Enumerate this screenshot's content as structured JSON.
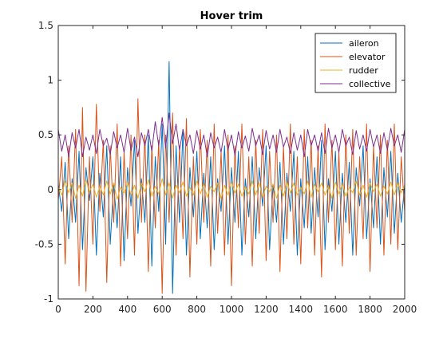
{
  "chart_data": {
    "type": "line",
    "title": "Hover trim",
    "xlabel": "",
    "ylabel": "",
    "xlim": [
      0,
      2000
    ],
    "ylim": [
      -1,
      1.5
    ],
    "xticks": [
      0,
      200,
      400,
      600,
      800,
      1000,
      1200,
      1400,
      1600,
      1800,
      2000
    ],
    "yticks": [
      -1,
      -0.5,
      0,
      0.5,
      1,
      1.5
    ],
    "xtick_labels": [
      "0",
      "200",
      "400",
      "600",
      "800",
      "1000",
      "1200",
      "1400",
      "1600",
      "1800",
      "2000"
    ],
    "ytick_labels": [
      "-1",
      "-0.5",
      "0",
      "0.5",
      "1",
      "1.5"
    ],
    "grid": false,
    "legend_position": "top-right",
    "series": [
      {
        "name": "aileron",
        "color": "#0072BD",
        "x": [
          0,
          20,
          40,
          60,
          80,
          100,
          120,
          140,
          160,
          180,
          200,
          220,
          240,
          260,
          280,
          300,
          320,
          340,
          360,
          380,
          400,
          420,
          440,
          460,
          480,
          500,
          520,
          540,
          560,
          580,
          600,
          620,
          640,
          660,
          680,
          700,
          720,
          740,
          760,
          780,
          800,
          820,
          840,
          860,
          880,
          900,
          920,
          940,
          960,
          980,
          1000,
          1020,
          1040,
          1060,
          1080,
          1100,
          1120,
          1140,
          1160,
          1180,
          1200,
          1220,
          1240,
          1260,
          1280,
          1300,
          1320,
          1340,
          1360,
          1380,
          1400,
          1420,
          1440,
          1460,
          1480,
          1500,
          1520,
          1540,
          1560,
          1580,
          1600,
          1620,
          1640,
          1660,
          1680,
          1700,
          1720,
          1740,
          1760,
          1780,
          1800,
          1820,
          1840,
          1860,
          1880,
          1900,
          1920,
          1940,
          1960,
          1980,
          2000
        ],
        "y": [
          0.05,
          -0.2,
          0.25,
          -0.45,
          0.1,
          -0.3,
          0.35,
          -0.55,
          0.2,
          -0.1,
          0.3,
          -0.6,
          0.15,
          -0.25,
          0.4,
          -0.5,
          0.05,
          -0.35,
          0.3,
          -0.65,
          0.2,
          -0.15,
          0.45,
          -0.4,
          0.1,
          -0.3,
          0.5,
          -0.7,
          0.3,
          -0.2,
          0.6,
          -0.5,
          1.17,
          -0.95,
          0.4,
          -0.3,
          0.55,
          -0.6,
          0.2,
          -0.25,
          0.35,
          -0.45,
          0.15,
          -0.35,
          0.3,
          -0.55,
          0.1,
          -0.2,
          0.4,
          -0.5,
          0.2,
          -0.3,
          0.35,
          -0.6,
          0.1,
          -0.25,
          0.3,
          -0.45,
          0.2,
          -0.15,
          0.4,
          -0.55,
          0.05,
          -0.3,
          0.25,
          -0.5,
          0.15,
          -0.2,
          0.35,
          -0.6,
          0.1,
          -0.35,
          0.3,
          -0.4,
          0.2,
          -0.25,
          0.45,
          -0.55,
          0.1,
          -0.2,
          0.35,
          -0.5,
          0.15,
          -0.3,
          0.25,
          -0.6,
          0.2,
          -0.15,
          0.4,
          -0.45,
          0.1,
          -0.35,
          0.3,
          -0.5,
          0.2,
          -0.25,
          0.35,
          -0.4,
          0.15,
          -0.3,
          0.05
        ]
      },
      {
        "name": "elevator",
        "color": "#D95319",
        "x": [
          0,
          20,
          40,
          60,
          80,
          100,
          120,
          140,
          160,
          180,
          200,
          220,
          240,
          260,
          280,
          300,
          320,
          340,
          360,
          380,
          400,
          420,
          440,
          460,
          480,
          500,
          520,
          540,
          560,
          580,
          600,
          620,
          640,
          660,
          680,
          700,
          720,
          740,
          760,
          780,
          800,
          820,
          840,
          860,
          880,
          900,
          920,
          940,
          960,
          980,
          1000,
          1020,
          1040,
          1060,
          1080,
          1100,
          1120,
          1140,
          1160,
          1180,
          1200,
          1220,
          1240,
          1260,
          1280,
          1300,
          1320,
          1340,
          1360,
          1380,
          1400,
          1420,
          1440,
          1460,
          1480,
          1500,
          1520,
          1540,
          1560,
          1580,
          1600,
          1620,
          1640,
          1660,
          1680,
          1700,
          1720,
          1740,
          1760,
          1780,
          1800,
          1820,
          1840,
          1860,
          1880,
          1900,
          1920,
          1940,
          1960,
          1980,
          2000
        ],
        "y": [
          -0.1,
          0.3,
          -0.68,
          0.4,
          -0.3,
          0.55,
          -0.88,
          0.75,
          -0.93,
          0.3,
          -0.5,
          0.78,
          -0.2,
          0.45,
          -0.85,
          0.4,
          -0.3,
          0.6,
          -0.7,
          0.35,
          -0.45,
          0.5,
          -0.6,
          0.83,
          -0.3,
          0.5,
          -0.75,
          0.4,
          -0.35,
          0.45,
          -0.95,
          0.5,
          -0.3,
          0.7,
          -0.6,
          0.4,
          -0.45,
          0.65,
          -0.8,
          0.3,
          -0.5,
          0.55,
          -0.3,
          0.45,
          -0.7,
          0.6,
          -0.4,
          0.35,
          -0.6,
          0.5,
          -0.88,
          0.4,
          -0.35,
          0.6,
          -0.5,
          0.3,
          -0.7,
          0.45,
          -0.4,
          0.55,
          -0.65,
          0.35,
          -0.3,
          0.5,
          -0.75,
          0.4,
          -0.45,
          0.6,
          -0.5,
          0.3,
          -0.68,
          0.55,
          -0.35,
          0.45,
          -0.6,
          0.4,
          -0.8,
          0.6,
          -0.3,
          0.45,
          -0.55,
          0.35,
          -0.7,
          0.5,
          -0.4,
          0.55,
          -0.6,
          0.3,
          -0.45,
          0.6,
          -0.75,
          0.4,
          -0.35,
          0.5,
          -0.6,
          0.45,
          -0.5,
          0.6,
          -0.55,
          0.3,
          -0.2
        ]
      },
      {
        "name": "rudder",
        "color": "#EDB120",
        "x": [
          0,
          20,
          40,
          60,
          80,
          100,
          120,
          140,
          160,
          180,
          200,
          220,
          240,
          260,
          280,
          300,
          320,
          340,
          360,
          380,
          400,
          420,
          440,
          460,
          480,
          500,
          520,
          540,
          560,
          580,
          600,
          620,
          640,
          660,
          680,
          700,
          720,
          740,
          760,
          780,
          800,
          820,
          840,
          860,
          880,
          900,
          920,
          940,
          960,
          980,
          1000,
          1020,
          1040,
          1060,
          1080,
          1100,
          1120,
          1140,
          1160,
          1180,
          1200,
          1220,
          1240,
          1260,
          1280,
          1300,
          1320,
          1340,
          1360,
          1380,
          1400,
          1420,
          1440,
          1460,
          1480,
          1500,
          1520,
          1540,
          1560,
          1580,
          1600,
          1620,
          1640,
          1660,
          1680,
          1700,
          1720,
          1740,
          1760,
          1780,
          1800,
          1820,
          1840,
          1860,
          1880,
          1900,
          1920,
          1940,
          1960,
          1980,
          2000
        ],
        "y": [
          0.02,
          -0.05,
          0.08,
          -0.03,
          0.06,
          -0.08,
          0.04,
          -0.06,
          0.09,
          -0.02,
          0.05,
          -0.07,
          0.03,
          -0.05,
          0.08,
          -0.04,
          0.06,
          -0.09,
          0.02,
          -0.03,
          0.07,
          -0.05,
          0.04,
          -0.08,
          0.06,
          -0.02,
          0.09,
          -0.06,
          0.03,
          -0.04,
          0.1,
          -0.05,
          0.06,
          -0.08,
          0.04,
          -0.03,
          0.07,
          -0.06,
          0.02,
          -0.05,
          0.08,
          -0.04,
          0.05,
          -0.07,
          0.03,
          -0.02,
          0.06,
          -0.08,
          0.04,
          -0.05,
          0.07,
          -0.03,
          0.05,
          -0.06,
          0.02,
          -0.04,
          0.08,
          -0.05,
          0.06,
          -0.07,
          0.03,
          -0.02,
          0.05,
          -0.08,
          0.04,
          -0.06,
          0.07,
          -0.03,
          0.06,
          -0.05,
          0.02,
          -0.04,
          0.08,
          -0.07,
          0.05,
          -0.02,
          0.06,
          -0.05,
          0.03,
          -0.08,
          0.07,
          -0.04,
          0.05,
          -0.06,
          0.02,
          -0.03,
          0.08,
          -0.05,
          0.04,
          -0.07,
          0.06,
          -0.02,
          0.05,
          -0.06,
          0.03,
          -0.04,
          0.07,
          -0.05,
          0.06,
          -0.03,
          0.04
        ]
      },
      {
        "name": "collective",
        "color": "#7E2F8E",
        "x": [
          0,
          20,
          40,
          60,
          80,
          100,
          120,
          140,
          160,
          180,
          200,
          220,
          240,
          260,
          280,
          300,
          320,
          340,
          360,
          380,
          400,
          420,
          440,
          460,
          480,
          500,
          520,
          540,
          560,
          580,
          600,
          620,
          640,
          660,
          680,
          700,
          720,
          740,
          760,
          780,
          800,
          820,
          840,
          860,
          880,
          900,
          920,
          940,
          960,
          980,
          1000,
          1020,
          1040,
          1060,
          1080,
          1100,
          1120,
          1140,
          1160,
          1180,
          1200,
          1220,
          1240,
          1260,
          1280,
          1300,
          1320,
          1340,
          1360,
          1380,
          1400,
          1420,
          1440,
          1460,
          1480,
          1500,
          1520,
          1540,
          1560,
          1580,
          1600,
          1620,
          1640,
          1660,
          1680,
          1700,
          1720,
          1740,
          1760,
          1780,
          1800,
          1820,
          1840,
          1860,
          1880,
          1900,
          1920,
          1940,
          1960,
          1980,
          2000
        ],
        "y": [
          0.55,
          0.35,
          0.5,
          0.3,
          0.52,
          0.38,
          0.55,
          0.3,
          0.48,
          0.36,
          0.5,
          0.33,
          0.55,
          0.4,
          0.47,
          0.32,
          0.53,
          0.38,
          0.5,
          0.34,
          0.56,
          0.36,
          0.48,
          0.3,
          0.52,
          0.4,
          0.55,
          0.35,
          0.62,
          0.4,
          0.66,
          0.38,
          0.7,
          0.42,
          0.6,
          0.36,
          0.55,
          0.4,
          0.5,
          0.33,
          0.54,
          0.37,
          0.5,
          0.3,
          0.52,
          0.38,
          0.48,
          0.34,
          0.55,
          0.36,
          0.5,
          0.31,
          0.53,
          0.38,
          0.49,
          0.35,
          0.56,
          0.4,
          0.5,
          0.32,
          0.54,
          0.37,
          0.5,
          0.34,
          0.55,
          0.39,
          0.48,
          0.33,
          0.52,
          0.36,
          0.5,
          0.3,
          0.55,
          0.4,
          0.5,
          0.35,
          0.52,
          0.33,
          0.56,
          0.38,
          0.5,
          0.34,
          0.55,
          0.4,
          0.48,
          0.32,
          0.54,
          0.37,
          0.5,
          0.35,
          0.55,
          0.39,
          0.5,
          0.33,
          0.52,
          0.36,
          0.56,
          0.4,
          0.5,
          0.34,
          0.55
        ]
      }
    ]
  }
}
